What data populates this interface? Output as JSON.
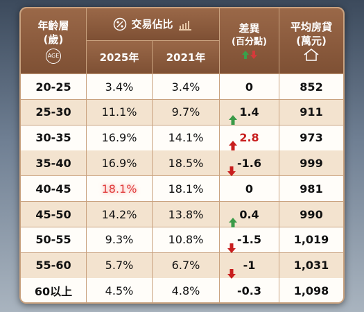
{
  "header": {
    "age": {
      "title": "年齡層",
      "unit": "(歲)",
      "badge": "AGE"
    },
    "share": {
      "title": "交易佔比",
      "years": [
        "2025年",
        "2021年"
      ]
    },
    "diff": {
      "title": "差異",
      "unit": "(百分點)"
    },
    "loan": {
      "title": "平均房貸",
      "unit": "(萬元)"
    }
  },
  "table": {
    "rows": [
      [
        "20-25",
        "3.4%",
        "3.4%",
        "0",
        "852"
      ],
      [
        "25-30",
        "11.1%",
        "9.7%",
        "1.4",
        "911"
      ],
      [
        "30-35",
        "16.9%",
        "14.1%",
        "2.8",
        "973"
      ],
      [
        "35-40",
        "16.9%",
        "18.5%",
        "-1.6",
        "999"
      ],
      [
        "40-45",
        "18.1%",
        "18.1%",
        "0",
        "981"
      ],
      [
        "45-50",
        "14.2%",
        "13.8%",
        "0.4",
        "990"
      ],
      [
        "50-55",
        "9.3%",
        "10.8%",
        "-1.5",
        "1,019"
      ],
      [
        "55-60",
        "5.7%",
        "6.7%",
        "-1",
        "1,031"
      ],
      [
        "60以上",
        "4.5%",
        "4.8%",
        "-0.3",
        "1,098"
      ]
    ]
  }
}
